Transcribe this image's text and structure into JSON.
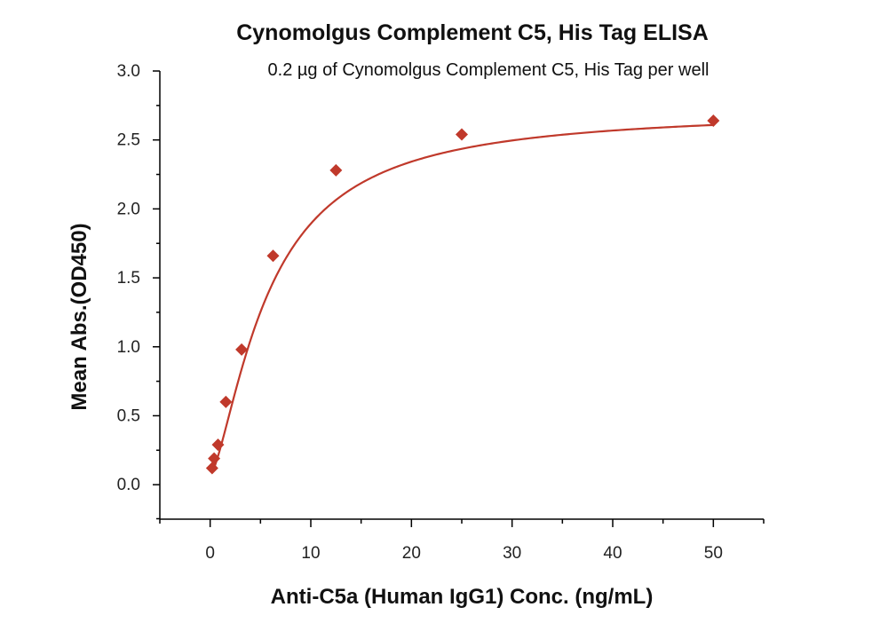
{
  "chart_data": {
    "type": "scatter",
    "title": "Cynomolgus Complement C5, His Tag ELISA",
    "subtitle": "0.2 µg of Cynomolgus Complement C5, His Tag per well",
    "xlabel": "Anti-C5a (Human IgG1) Conc. (ng/mL)",
    "ylabel": "Mean Abs.(OD450)",
    "xlim": [
      -5,
      55
    ],
    "ylim": [
      -0.25,
      3.0
    ],
    "x_ticks": [
      0,
      10,
      20,
      30,
      40,
      50
    ],
    "x_tick_labels": [
      "0",
      "10",
      "20",
      "30",
      "40",
      "50"
    ],
    "y_ticks": [
      0.0,
      0.5,
      1.0,
      1.5,
      2.0,
      2.5,
      3.0
    ],
    "y_tick_labels": [
      "0.0",
      "0.5",
      "1.0",
      "1.5",
      "2.0",
      "2.5",
      "3.0"
    ],
    "grid": false,
    "color": "#c0392b",
    "series": [
      {
        "marker": "diamond",
        "x": [
          0.195,
          0.39,
          0.78,
          1.56,
          3.125,
          6.25,
          12.5,
          25,
          50
        ],
        "y": [
          0.12,
          0.19,
          0.29,
          0.6,
          0.98,
          1.66,
          2.28,
          2.54,
          2.64
        ]
      }
    ],
    "fit_curve": {
      "model": "4PL",
      "bottom": 0.07,
      "top": 2.72,
      "ec50": 5.8,
      "hill": 1.45
    }
  }
}
